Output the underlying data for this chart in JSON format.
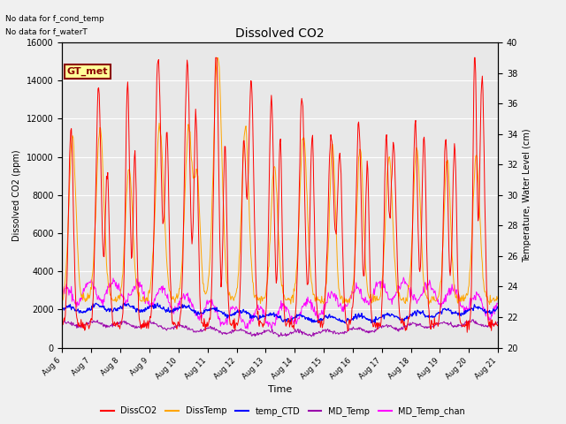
{
  "title": "Dissolved CO2",
  "xlabel": "Time",
  "ylabel_left": "Dissolved CO2 (ppm)",
  "ylabel_right": "Temperature, Water Level (cm)",
  "annotation_lines": [
    "No data for f_cond_temp",
    "No data for f_waterT"
  ],
  "box_label": "GT_met",
  "box_facecolor": "#FFFF99",
  "box_edgecolor": "#8B0000",
  "box_textcolor": "#8B0000",
  "ylim_left": [
    0,
    16000
  ],
  "ylim_right": [
    20,
    40
  ],
  "bg_color": "#E8E8E8",
  "grid_color": "#FFFFFF",
  "series_colors": {
    "DissCO2": "#FF0000",
    "DissTemp": "#FFA500",
    "temp_CTD": "#0000FF",
    "MD_Temp": "#9900AA",
    "MD_Temp_chan": "#FF00FF"
  },
  "legend_labels": [
    "DissCO2",
    "DissTemp",
    "temp_CTD",
    "MD_Temp",
    "MD_Temp_chan"
  ],
  "x_tick_labels": [
    "Aug 6",
    "Aug 7",
    "Aug 8",
    "Aug 9",
    "Aug 10",
    "Aug 11",
    "Aug 12",
    "Aug 13",
    "Aug 14",
    "Aug 15",
    "Aug 16",
    "Aug 17",
    "Aug 18",
    "Aug 19",
    "Aug 20",
    "Aug 21"
  ],
  "x_tick_positions": [
    0,
    1,
    2,
    3,
    4,
    5,
    6,
    7,
    8,
    9,
    10,
    11,
    12,
    13,
    14,
    15
  ]
}
